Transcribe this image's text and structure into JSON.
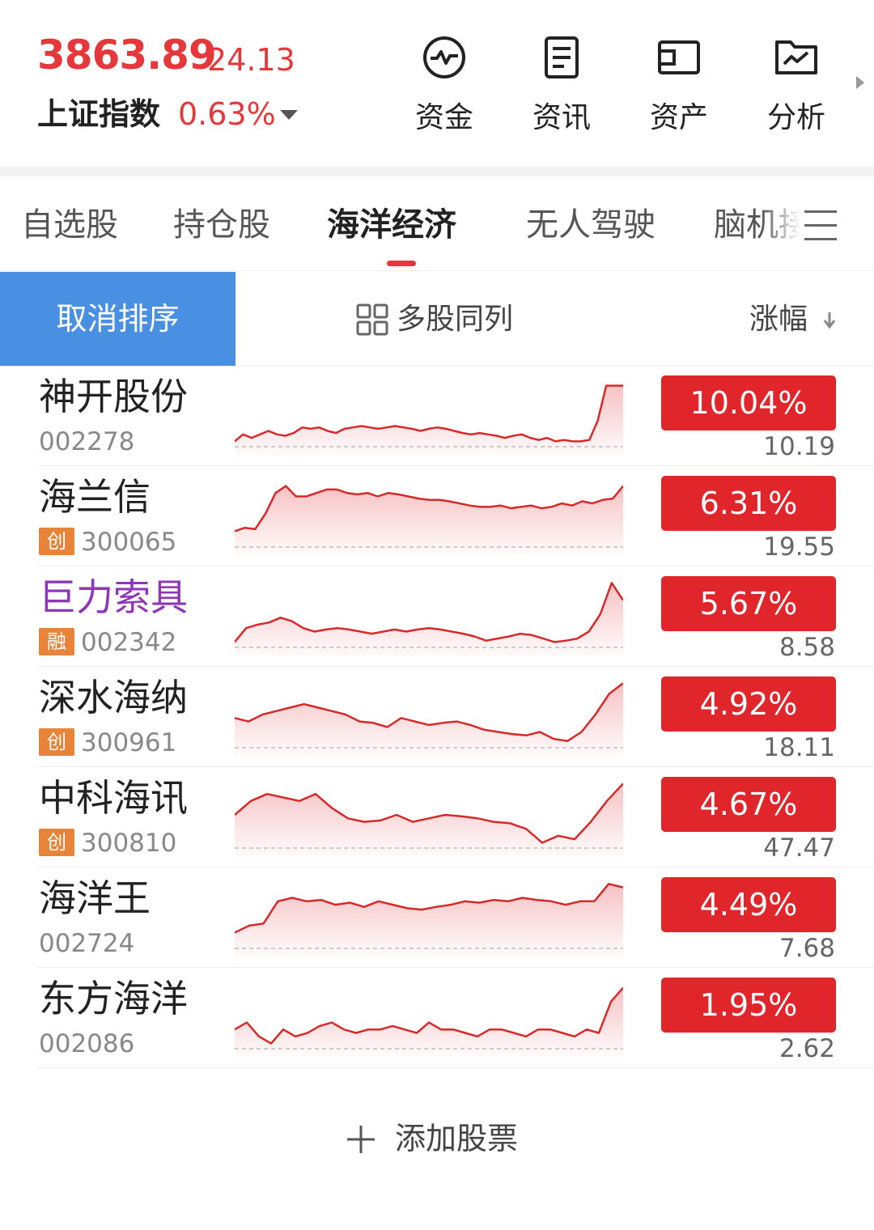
{
  "index": {
    "price": "3863.89",
    "change": "24.13",
    "name": "上证指数",
    "pct": "0.63%"
  },
  "tools": [
    {
      "label": "资金",
      "icon": "pulse-circle-icon"
    },
    {
      "label": "资讯",
      "icon": "document-icon"
    },
    {
      "label": "资产",
      "icon": "wallet-icon"
    },
    {
      "label": "分析",
      "icon": "folder-chart-icon"
    }
  ],
  "tabs": [
    "自选股",
    "持仓股",
    "海洋经济",
    "无人驾驶",
    "脑机接"
  ],
  "sortbar": {
    "cancel": "取消排序",
    "multi": "多股同列",
    "column": "涨幅"
  },
  "colors": {
    "up": "#e0262b",
    "accent_blue": "#4a90e2",
    "tag_orange": "#e8843a"
  },
  "stocks": [
    {
      "name": "神开股份",
      "code": "002278",
      "tag": "",
      "pct": "10.04%",
      "price": "10.19",
      "spark": [
        0.9,
        0.8,
        0.85,
        0.8,
        0.75,
        0.8,
        0.82,
        0.78,
        0.7,
        0.72,
        0.7,
        0.75,
        0.78,
        0.72,
        0.7,
        0.68,
        0.7,
        0.72,
        0.7,
        0.68,
        0.7,
        0.72,
        0.75,
        0.72,
        0.7,
        0.72,
        0.75,
        0.78,
        0.8,
        0.78,
        0.8,
        0.82,
        0.85,
        0.82,
        0.8,
        0.85,
        0.88,
        0.85,
        0.9,
        0.88,
        0.9,
        0.9,
        0.88,
        0.6,
        0.1,
        0.1,
        0.1
      ]
    },
    {
      "name": "海兰信",
      "code": "300065",
      "tag": "创",
      "pct": "6.31%",
      "price": "19.55",
      "spark": [
        0.75,
        0.7,
        0.72,
        0.5,
        0.2,
        0.1,
        0.25,
        0.25,
        0.2,
        0.15,
        0.15,
        0.2,
        0.22,
        0.2,
        0.25,
        0.2,
        0.22,
        0.25,
        0.28,
        0.3,
        0.3,
        0.32,
        0.35,
        0.38,
        0.4,
        0.4,
        0.38,
        0.42,
        0.4,
        0.38,
        0.42,
        0.4,
        0.35,
        0.38,
        0.32,
        0.35,
        0.3,
        0.28,
        0.1
      ]
    },
    {
      "name": "巨力索具",
      "code": "002342",
      "tag": "融",
      "pct": "5.67%",
      "price": "8.58",
      "purple": true,
      "spark": [
        0.9,
        0.7,
        0.65,
        0.62,
        0.55,
        0.6,
        0.7,
        0.75,
        0.72,
        0.7,
        0.72,
        0.75,
        0.78,
        0.75,
        0.72,
        0.75,
        0.72,
        0.7,
        0.72,
        0.75,
        0.78,
        0.82,
        0.88,
        0.85,
        0.82,
        0.78,
        0.8,
        0.85,
        0.9,
        0.88,
        0.85,
        0.75,
        0.5,
        0.05,
        0.3
      ]
    },
    {
      "name": "深水海纳",
      "code": "300961",
      "tag": "创",
      "pct": "4.92%",
      "price": "18.11",
      "spark": [
        0.55,
        0.6,
        0.5,
        0.45,
        0.4,
        0.35,
        0.4,
        0.45,
        0.5,
        0.6,
        0.62,
        0.68,
        0.55,
        0.6,
        0.65,
        0.62,
        0.6,
        0.65,
        0.72,
        0.75,
        0.78,
        0.8,
        0.75,
        0.85,
        0.88,
        0.75,
        0.5,
        0.2,
        0.05
      ]
    },
    {
      "name": "中科海讯",
      "code": "300810",
      "tag": "创",
      "pct": "4.67%",
      "price": "47.47",
      "spark": [
        0.5,
        0.3,
        0.2,
        0.25,
        0.3,
        0.2,
        0.4,
        0.55,
        0.6,
        0.58,
        0.5,
        0.6,
        0.55,
        0.5,
        0.52,
        0.55,
        0.6,
        0.62,
        0.7,
        0.9,
        0.8,
        0.85,
        0.6,
        0.3,
        0.05
      ]
    },
    {
      "name": "海洋王",
      "code": "002724",
      "tag": "",
      "pct": "4.49%",
      "price": "7.68",
      "spark": [
        0.75,
        0.65,
        0.62,
        0.3,
        0.25,
        0.3,
        0.28,
        0.35,
        0.32,
        0.38,
        0.3,
        0.35,
        0.4,
        0.42,
        0.38,
        0.35,
        0.3,
        0.32,
        0.28,
        0.3,
        0.25,
        0.28,
        0.3,
        0.35,
        0.3,
        0.3,
        0.05,
        0.1
      ]
    },
    {
      "name": "东方海洋",
      "code": "002086",
      "tag": "",
      "pct": "1.95%",
      "price": "2.62",
      "spark": [
        0.7,
        0.6,
        0.8,
        0.9,
        0.7,
        0.8,
        0.75,
        0.65,
        0.6,
        0.7,
        0.75,
        0.7,
        0.7,
        0.65,
        0.7,
        0.75,
        0.6,
        0.7,
        0.7,
        0.75,
        0.8,
        0.7,
        0.7,
        0.75,
        0.8,
        0.7,
        0.7,
        0.75,
        0.8,
        0.7,
        0.75,
        0.3,
        0.1
      ]
    }
  ],
  "add_stock": "添加股票"
}
